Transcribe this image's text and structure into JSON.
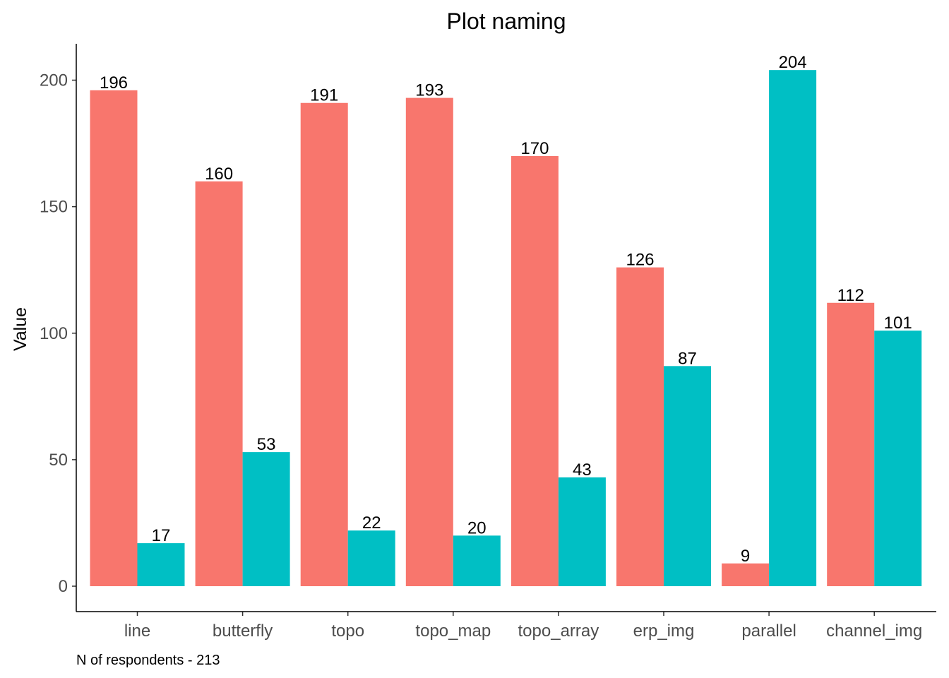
{
  "chart_data": {
    "type": "bar",
    "title": "Plot naming",
    "xlabel": "",
    "ylabel": "Value",
    "caption": "N of respondents - 213",
    "categories": [
      "line",
      "butterfly",
      "topo",
      "topo_map",
      "topo_array",
      "erp_img",
      "parallel",
      "channel_img"
    ],
    "series": [
      {
        "color": "#F8766D",
        "values": [
          196,
          160,
          191,
          193,
          170,
          126,
          9,
          112
        ]
      },
      {
        "color": "#00BFC4",
        "values": [
          17,
          53,
          22,
          20,
          43,
          87,
          204,
          101
        ]
      }
    ],
    "ylim": [
      0,
      213
    ],
    "yticks": [
      "0",
      "50",
      "100",
      "150",
      "200"
    ],
    "legend": "none",
    "grid": false
  }
}
